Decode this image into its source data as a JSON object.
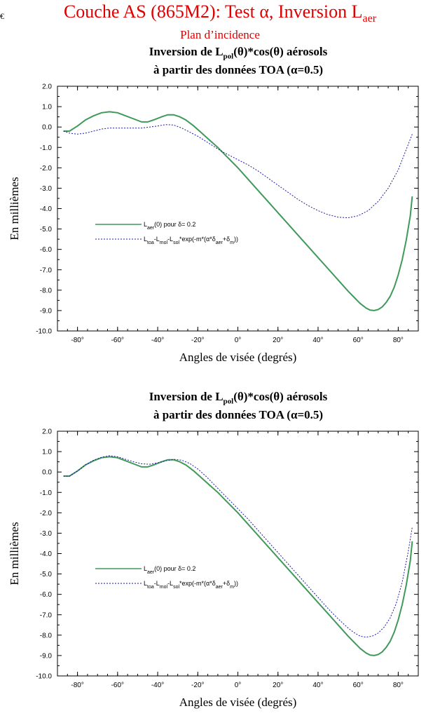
{
  "header": {
    "title_main": "Couche AS (865M2): Test α, Inversion L",
    "title_sub": "aer",
    "subtitle": "Plan d’incidence",
    "corner_mark": "€"
  },
  "colors": {
    "title": "#e00000",
    "series_solid": "#3f9a5a",
    "series_dashed": "#1a1aa8"
  },
  "chart_data": [
    {
      "type": "line",
      "title_line1": {
        "pre": "Inversion de L",
        "sub": "pol",
        "post": "(θ)*cos(θ) aérosols"
      },
      "title_line2": "à partir des données TOA (α=0.5)",
      "xlabel": "Angles de visée (degrés)",
      "ylabel": "En millièmes",
      "xlim": [
        -90,
        90
      ],
      "ylim": [
        -10,
        2
      ],
      "xticks": [
        -80,
        -60,
        -40,
        -20,
        0,
        20,
        40,
        60,
        80
      ],
      "xtick_labels": [
        "-80°",
        "-60°",
        "-40°",
        "-20°",
        "0°",
        "20°",
        "40°",
        "60°",
        "80°"
      ],
      "yticks": [
        2,
        1,
        0,
        -1,
        -2,
        -3,
        -4,
        -5,
        -6,
        -7,
        -8,
        -9,
        -10
      ],
      "ytick_labels": [
        "2.0",
        "1.0",
        "0.0",
        "-1.0",
        "-2.0",
        "-3.0",
        "-4.0",
        "-5.0",
        "-6.0",
        "-7.0",
        "-8.0",
        "-9.0",
        "-10.0"
      ],
      "legend_position": "center-left",
      "series": [
        {
          "name": "L_aer(0) pour δ= 0.2",
          "label": {
            "pre": "L",
            "sub": "aer",
            "post": "(0) pour δ= 0.2"
          },
          "style": "solid",
          "x": [
            -87,
            -84,
            -80,
            -76,
            -72,
            -68,
            -64,
            -60,
            -56,
            -52,
            -48,
            -45,
            -42,
            -38,
            -35,
            -32,
            -29,
            -26,
            -22,
            -18,
            -14,
            -10,
            -6,
            -2,
            0,
            5,
            10,
            15,
            20,
            25,
            30,
            35,
            40,
            45,
            50,
            55,
            58,
            61,
            64,
            66,
            68,
            70,
            72,
            74,
            76,
            78,
            80,
            82,
            84,
            86,
            87
          ],
          "y": [
            -0.2,
            -0.2,
            0.05,
            0.35,
            0.55,
            0.7,
            0.75,
            0.7,
            0.55,
            0.4,
            0.25,
            0.25,
            0.35,
            0.5,
            0.6,
            0.6,
            0.5,
            0.35,
            0.05,
            -0.3,
            -0.65,
            -1.0,
            -1.4,
            -1.8,
            -2.0,
            -2.55,
            -3.1,
            -3.65,
            -4.2,
            -4.75,
            -5.3,
            -5.85,
            -6.4,
            -6.95,
            -7.5,
            -8.05,
            -8.35,
            -8.65,
            -8.88,
            -8.98,
            -9.0,
            -8.95,
            -8.82,
            -8.6,
            -8.3,
            -7.85,
            -7.25,
            -6.5,
            -5.55,
            -4.35,
            -3.4
          ]
        },
        {
          "name": "L_toa-L_mol-L_sol*exp(-m*(α*δ_aer+δ_m))",
          "label": {
            "p1": "L",
            "s1": "toa",
            "p2": "-L",
            "s2": "mol",
            "p3": "-L",
            "s3": "sol",
            "p4": "*exp(-m*(α*δ",
            "s4": "aer",
            "p5": "+δ",
            "s5": "m",
            "p6": "))"
          },
          "style": "dashed",
          "x": [
            -87,
            -84,
            -80,
            -76,
            -72,
            -68,
            -64,
            -60,
            -56,
            -52,
            -48,
            -44,
            -40,
            -36,
            -32,
            -28,
            -24,
            -20,
            -16,
            -12,
            -8,
            -4,
            0,
            5,
            10,
            15,
            20,
            25,
            30,
            35,
            40,
            45,
            50,
            55,
            60,
            65,
            70,
            75,
            80,
            84,
            87
          ],
          "y": [
            -0.2,
            -0.3,
            -0.35,
            -0.3,
            -0.2,
            -0.1,
            -0.05,
            -0.05,
            -0.05,
            -0.05,
            -0.05,
            0.0,
            0.05,
            0.12,
            0.1,
            -0.05,
            -0.25,
            -0.45,
            -0.7,
            -0.95,
            -1.2,
            -1.4,
            -1.6,
            -1.85,
            -2.15,
            -2.5,
            -2.85,
            -3.2,
            -3.55,
            -3.85,
            -4.1,
            -4.3,
            -4.42,
            -4.45,
            -4.35,
            -4.1,
            -3.65,
            -3.0,
            -2.1,
            -1.1,
            -0.35
          ]
        }
      ]
    },
    {
      "type": "line",
      "title_line1": {
        "pre": "Inversion de L",
        "sub": "pol",
        "post": "(θ)*cos(θ)  aérosols"
      },
      "title_line2": "à partir des données TOA (α=0.5)",
      "xlabel": "Angles de visée (degrés)",
      "ylabel": "En millièmes",
      "xlim": [
        -90,
        90
      ],
      "ylim": [
        -10,
        2
      ],
      "xticks": [
        -80,
        -60,
        -40,
        -20,
        0,
        20,
        40,
        60,
        80
      ],
      "xtick_labels": [
        "-80°",
        "-60°",
        "-40°",
        "-20°",
        "0°",
        "20°",
        "40°",
        "60°",
        "80°"
      ],
      "yticks": [
        2,
        1,
        0,
        -1,
        -2,
        -3,
        -4,
        -5,
        -6,
        -7,
        -8,
        -9,
        -10
      ],
      "ytick_labels": [
        "2.0",
        "1.0",
        "0.0",
        "-1.0",
        "-2.0",
        "-3.0",
        "-4.0",
        "-5.0",
        "-6.0",
        "-7.0",
        "-8.0",
        "-9.0",
        "-10.0"
      ],
      "legend_position": "center-left",
      "series": [
        {
          "name": "L_aer(0) pour δ= 0.2",
          "label": {
            "pre": "L",
            "sub": "aer",
            "post": "(0) pour δ= 0.2"
          },
          "style": "solid",
          "x": [
            -87,
            -84,
            -80,
            -76,
            -72,
            -68,
            -64,
            -60,
            -56,
            -52,
            -48,
            -45,
            -42,
            -38,
            -35,
            -32,
            -29,
            -26,
            -22,
            -18,
            -14,
            -10,
            -6,
            -2,
            0,
            5,
            10,
            15,
            20,
            25,
            30,
            35,
            40,
            45,
            50,
            55,
            58,
            61,
            64,
            66,
            68,
            70,
            72,
            74,
            76,
            78,
            80,
            82,
            84,
            86,
            87
          ],
          "y": [
            -0.2,
            -0.2,
            0.05,
            0.35,
            0.55,
            0.7,
            0.75,
            0.7,
            0.55,
            0.4,
            0.25,
            0.25,
            0.35,
            0.5,
            0.6,
            0.6,
            0.5,
            0.35,
            0.05,
            -0.3,
            -0.65,
            -1.0,
            -1.4,
            -1.8,
            -2.0,
            -2.55,
            -3.1,
            -3.65,
            -4.2,
            -4.75,
            -5.3,
            -5.85,
            -6.4,
            -6.95,
            -7.5,
            -8.05,
            -8.35,
            -8.65,
            -8.88,
            -8.98,
            -9.0,
            -8.95,
            -8.82,
            -8.6,
            -8.3,
            -7.85,
            -7.25,
            -6.5,
            -5.55,
            -4.35,
            -3.4
          ]
        },
        {
          "name": "L_toa-L_mol-L_sol*exp(-m*(α*δ_aer+δ_m))",
          "label": {
            "p1": "L",
            "s1": "toa",
            "p2": "-L",
            "s2": "mol",
            "p3": "-L",
            "s3": "sol",
            "p4": "*exp(-m*(α*δ",
            "s4": "aer",
            "p5": "+δ",
            "s5": "m",
            "p6": "))"
          },
          "style": "dashed",
          "x": [
            -87,
            -84,
            -80,
            -76,
            -72,
            -68,
            -64,
            -60,
            -56,
            -52,
            -48,
            -44,
            -40,
            -36,
            -32,
            -28,
            -24,
            -20,
            -16,
            -12,
            -8,
            -4,
            0,
            5,
            10,
            15,
            20,
            25,
            30,
            35,
            40,
            45,
            50,
            55,
            58,
            61,
            64,
            67,
            70,
            73,
            76,
            79,
            82,
            85,
            87
          ],
          "y": [
            -0.2,
            -0.2,
            0.05,
            0.35,
            0.58,
            0.72,
            0.8,
            0.75,
            0.62,
            0.5,
            0.4,
            0.38,
            0.45,
            0.55,
            0.62,
            0.58,
            0.42,
            0.15,
            -0.2,
            -0.6,
            -1.0,
            -1.4,
            -1.8,
            -2.3,
            -2.85,
            -3.4,
            -3.95,
            -4.5,
            -5.05,
            -5.6,
            -6.15,
            -6.7,
            -7.2,
            -7.65,
            -7.88,
            -8.05,
            -8.1,
            -8.05,
            -7.9,
            -7.6,
            -7.15,
            -6.45,
            -5.4,
            -3.9,
            -2.7
          ]
        }
      ]
    }
  ]
}
